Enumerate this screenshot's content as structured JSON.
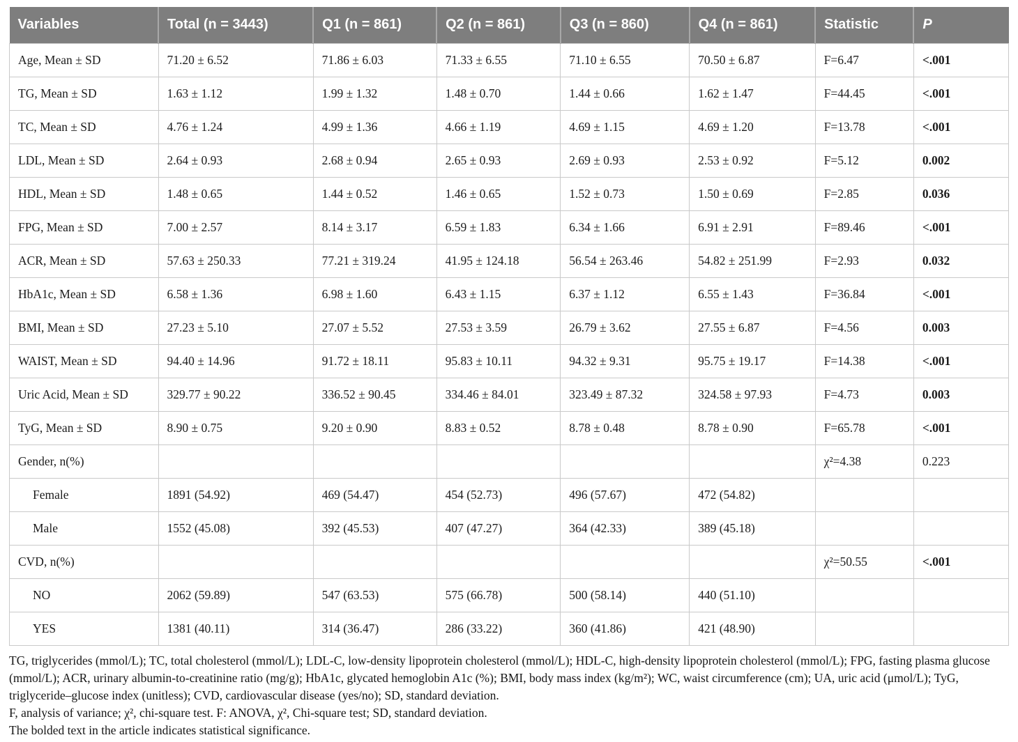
{
  "colors": {
    "header_background": "#7e7e7e",
    "header_text": "#ffffff",
    "grid_border": "#c9c9c9",
    "body_text": "#1c1c1c"
  },
  "table": {
    "headers": [
      "Variables",
      "Total (n = 3443)",
      "Q1 (n = 861)",
      "Q2 (n = 861)",
      "Q3 (n = 860)",
      "Q4 (n = 861)",
      "Statistic",
      "P"
    ],
    "rows": [
      {
        "label": "Age, Mean ± SD",
        "indent": false,
        "cells": [
          "71.20 ± 6.52",
          "71.86 ± 6.03",
          "71.33 ± 6.55",
          "71.10 ± 6.55",
          "70.50 ± 6.87"
        ],
        "statistic": "F=6.47",
        "p": "<.001",
        "p_bold": true
      },
      {
        "label": "TG, Mean ± SD",
        "indent": false,
        "cells": [
          "1.63 ± 1.12",
          "1.99 ± 1.32",
          "1.48 ± 0.70",
          "1.44 ± 0.66",
          "1.62 ± 1.47"
        ],
        "statistic": "F=44.45",
        "p": "<.001",
        "p_bold": true
      },
      {
        "label": "TC, Mean ± SD",
        "indent": false,
        "cells": [
          "4.76 ± 1.24",
          "4.99 ± 1.36",
          "4.66 ± 1.19",
          "4.69 ± 1.15",
          "4.69 ± 1.20"
        ],
        "statistic": "F=13.78",
        "p": "<.001",
        "p_bold": true
      },
      {
        "label": "LDL, Mean ± SD",
        "indent": false,
        "cells": [
          "2.64 ± 0.93",
          "2.68 ± 0.94",
          "2.65 ± 0.93",
          "2.69 ± 0.93",
          "2.53 ± 0.92"
        ],
        "statistic": "F=5.12",
        "p": "0.002",
        "p_bold": true
      },
      {
        "label": "HDL, Mean ± SD",
        "indent": false,
        "cells": [
          "1.48 ± 0.65",
          "1.44 ± 0.52",
          "1.46 ± 0.65",
          "1.52 ± 0.73",
          "1.50 ± 0.69"
        ],
        "statistic": "F=2.85",
        "p": "0.036",
        "p_bold": true
      },
      {
        "label": "FPG, Mean ± SD",
        "indent": false,
        "cells": [
          "7.00 ± 2.57",
          "8.14 ± 3.17",
          "6.59 ± 1.83",
          "6.34 ± 1.66",
          "6.91 ± 2.91"
        ],
        "statistic": "F=89.46",
        "p": "<.001",
        "p_bold": true
      },
      {
        "label": "ACR, Mean ± SD",
        "indent": false,
        "cells": [
          "57.63 ± 250.33",
          "77.21 ± 319.24",
          "41.95 ± 124.18",
          "56.54 ± 263.46",
          "54.82 ± 251.99"
        ],
        "statistic": "F=2.93",
        "p": "0.032",
        "p_bold": true
      },
      {
        "label": "HbA1c, Mean ± SD",
        "indent": false,
        "cells": [
          "6.58 ± 1.36",
          "6.98 ± 1.60",
          "6.43 ± 1.15",
          "6.37 ± 1.12",
          "6.55 ± 1.43"
        ],
        "statistic": "F=36.84",
        "p": "<.001",
        "p_bold": true
      },
      {
        "label": "BMI, Mean ± SD",
        "indent": false,
        "cells": [
          "27.23 ± 5.10",
          "27.07 ± 5.52",
          "27.53 ± 3.59",
          "26.79 ± 3.62",
          "27.55 ± 6.87"
        ],
        "statistic": "F=4.56",
        "p": "0.003",
        "p_bold": true
      },
      {
        "label": "WAIST, Mean ± SD",
        "indent": false,
        "cells": [
          "94.40 ± 14.96",
          "91.72 ± 18.11",
          "95.83 ± 10.11",
          "94.32 ± 9.31",
          "95.75 ± 19.17"
        ],
        "statistic": "F=14.38",
        "p": "<.001",
        "p_bold": true
      },
      {
        "label": "Uric Acid, Mean ± SD",
        "indent": false,
        "cells": [
          "329.77 ± 90.22",
          "336.52 ± 90.45",
          "334.46 ± 84.01",
          "323.49 ± 87.32",
          "324.58 ± 97.93"
        ],
        "statistic": "F=4.73",
        "p": "0.003",
        "p_bold": true
      },
      {
        "label": "TyG, Mean ± SD",
        "indent": false,
        "cells": [
          "8.90 ± 0.75",
          "9.20 ± 0.90",
          "8.83 ± 0.52",
          "8.78 ± 0.48",
          "8.78 ± 0.90"
        ],
        "statistic": "F=65.78",
        "p": "<.001",
        "p_bold": true
      },
      {
        "label": "Gender, n(%)",
        "indent": false,
        "cells": [
          "",
          "",
          "",
          "",
          ""
        ],
        "statistic": "χ²=4.38",
        "p": "0.223",
        "p_bold": false
      },
      {
        "label": "Female",
        "indent": true,
        "cells": [
          "1891 (54.92)",
          "469 (54.47)",
          "454 (52.73)",
          "496 (57.67)",
          "472 (54.82)"
        ],
        "statistic": "",
        "p": "",
        "p_bold": false
      },
      {
        "label": "Male",
        "indent": true,
        "cells": [
          "1552 (45.08)",
          "392 (45.53)",
          "407 (47.27)",
          "364 (42.33)",
          "389 (45.18)"
        ],
        "statistic": "",
        "p": "",
        "p_bold": false
      },
      {
        "label": "CVD, n(%)",
        "indent": false,
        "cells": [
          "",
          "",
          "",
          "",
          ""
        ],
        "statistic": "χ²=50.55",
        "p": "<.001",
        "p_bold": true
      },
      {
        "label": "NO",
        "indent": true,
        "cells": [
          "2062 (59.89)",
          "547 (63.53)",
          "575 (66.78)",
          "500 (58.14)",
          "440 (51.10)"
        ],
        "statistic": "",
        "p": "",
        "p_bold": false
      },
      {
        "label": "YES",
        "indent": true,
        "cells": [
          "1381 (40.11)",
          "314 (36.47)",
          "286 (33.22)",
          "360 (41.86)",
          "421 (48.90)"
        ],
        "statistic": "",
        "p": "",
        "p_bold": false
      }
    ]
  },
  "footnotes": [
    "TG, triglycerides (mmol/L); TC, total cholesterol (mmol/L); LDL-C, low-density lipoprotein cholesterol (mmol/L); HDL-C, high-density lipoprotein cholesterol (mmol/L); FPG, fasting plasma glucose (mmol/L); ACR, urinary albumin-to-creatinine ratio (mg/g); HbA1c, glycated hemoglobin A1c (%); BMI, body mass index (kg/m²); WC, waist circumference (cm); UA, uric acid (μmol/L); TyG, triglyceride–glucose index (unitless); CVD, cardiovascular disease (yes/no); SD, standard deviation.",
    "F, analysis of variance; χ², chi-square test. F: ANOVA, χ², Chi-square test; SD, standard deviation.",
    "The bolded text in the article indicates statistical significance."
  ]
}
